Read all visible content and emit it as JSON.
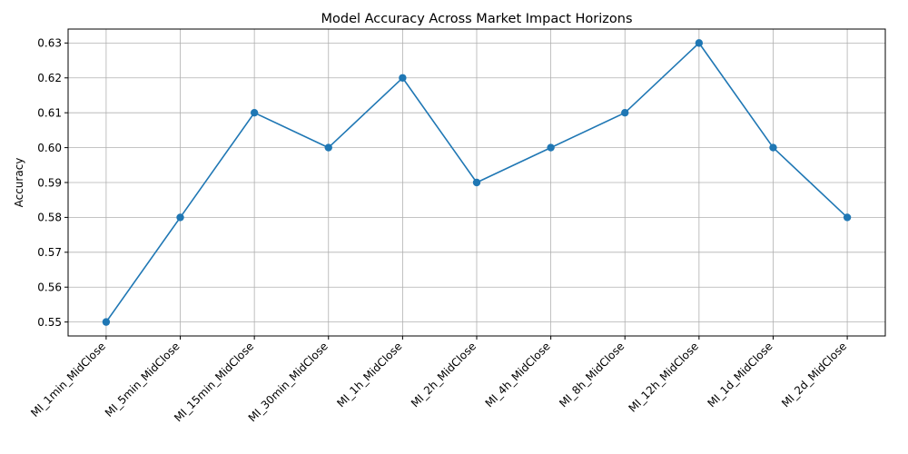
{
  "chart_data": {
    "type": "line",
    "title": "Model Accuracy Across Market Impact Horizons",
    "xlabel": "",
    "ylabel": "Accuracy",
    "categories": [
      "MI_1min_MidClose",
      "MI_5min_MidClose",
      "MI_15min_MidClose",
      "MI_30min_MidClose",
      "MI_1h_MidClose",
      "MI_2h_MidClose",
      "MI_4h_MidClose",
      "MI_8h_MidClose",
      "MI_12h_MidClose",
      "MI_1d_MidClose",
      "MI_2d_MidClose"
    ],
    "series": [
      {
        "values": [
          0.55,
          0.58,
          0.61,
          0.6,
          0.62,
          0.59,
          0.6,
          0.61,
          0.63,
          0.6,
          0.58
        ]
      }
    ],
    "ylim": [
      0.546,
      0.634
    ],
    "yticks": [
      0.55,
      0.56,
      0.57,
      0.58,
      0.59,
      0.6,
      0.61,
      0.62,
      0.63
    ],
    "ytick_labels": [
      "0.55",
      "0.56",
      "0.57",
      "0.58",
      "0.59",
      "0.60",
      "0.61",
      "0.62",
      "0.63"
    ],
    "grid": true,
    "marker": "circle",
    "line_color": "#1f77b4",
    "grid_color": "#b0b0b0"
  }
}
